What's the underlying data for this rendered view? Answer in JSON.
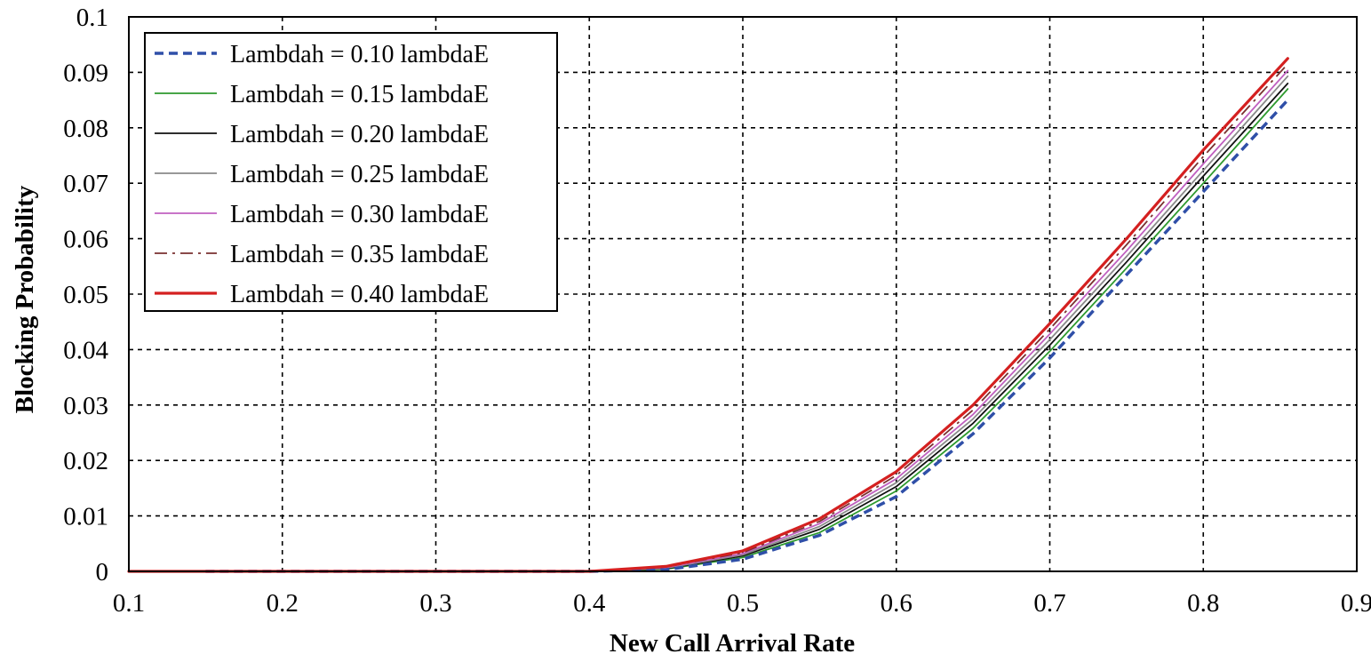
{
  "chart_data": {
    "type": "line",
    "title": "",
    "xlabel": "New Call Arrival Rate",
    "ylabel": "Blocking Probability",
    "xlim": [
      0.1,
      0.9
    ],
    "ylim": [
      0,
      0.1
    ],
    "xticks": [
      "0.1",
      "0.2",
      "0.3",
      "0.4",
      "0.5",
      "0.6",
      "0.7",
      "0.8",
      "0.9"
    ],
    "yticks": [
      "0",
      "0.01",
      "0.02",
      "0.03",
      "0.04",
      "0.05",
      "0.06",
      "0.07",
      "0.08",
      "0.09",
      "0.1"
    ],
    "grid": true,
    "legend_position": "top-left",
    "series": [
      {
        "name": "Lambdah = 0.10 lambdaE",
        "color": "#2f4fa8",
        "style": "dashed",
        "width": 3.5,
        "x": [
          0.15,
          0.2,
          0.3,
          0.4,
          0.45,
          0.5,
          0.55,
          0.6,
          0.65,
          0.7,
          0.75,
          0.8,
          0.855
        ],
        "y": [
          0,
          0,
          0,
          0,
          0.0003,
          0.0022,
          0.0065,
          0.0135,
          0.0248,
          0.0385,
          0.0535,
          0.0685,
          0.085
        ]
      },
      {
        "name": "Lambdah = 0.15 lambdaE",
        "color": "#2e9a2e",
        "style": "solid",
        "width": 1.8,
        "x": [
          0.15,
          0.2,
          0.3,
          0.4,
          0.45,
          0.5,
          0.55,
          0.6,
          0.65,
          0.7,
          0.75,
          0.8,
          0.855
        ],
        "y": [
          0,
          0,
          0,
          0,
          0.0004,
          0.0025,
          0.007,
          0.0145,
          0.0258,
          0.0397,
          0.0547,
          0.07,
          0.087
        ]
      },
      {
        "name": "Lambdah = 0.20 lambdaE",
        "color": "#111111",
        "style": "solid",
        "width": 1.8,
        "x": [
          0.15,
          0.2,
          0.3,
          0.4,
          0.45,
          0.5,
          0.55,
          0.6,
          0.65,
          0.7,
          0.75,
          0.8,
          0.855
        ],
        "y": [
          0,
          0,
          0,
          0,
          0.0005,
          0.0028,
          0.0076,
          0.0153,
          0.0267,
          0.0408,
          0.0558,
          0.0713,
          0.088
        ]
      },
      {
        "name": "Lambdah = 0.25 lambdaE",
        "color": "#8a8a8a",
        "style": "solid",
        "width": 1.8,
        "x": [
          0.15,
          0.2,
          0.3,
          0.4,
          0.45,
          0.5,
          0.55,
          0.6,
          0.65,
          0.7,
          0.75,
          0.8,
          0.855
        ],
        "y": [
          0,
          0,
          0,
          0,
          0.0006,
          0.003,
          0.0081,
          0.016,
          0.0275,
          0.0418,
          0.0568,
          0.0723,
          0.0893
        ]
      },
      {
        "name": "Lambdah = 0.30 lambdaE",
        "color": "#c060c0",
        "style": "solid",
        "width": 1.8,
        "x": [
          0.15,
          0.2,
          0.3,
          0.4,
          0.45,
          0.5,
          0.55,
          0.6,
          0.65,
          0.7,
          0.75,
          0.8,
          0.855
        ],
        "y": [
          0,
          0,
          0,
          0,
          0.0007,
          0.0032,
          0.0086,
          0.0167,
          0.0283,
          0.0428,
          0.0578,
          0.0735,
          0.0903
        ]
      },
      {
        "name": "Lambdah = 0.35 lambdaE",
        "color": "#7a3030",
        "style": "dashdot",
        "width": 1.8,
        "x": [
          0.15,
          0.2,
          0.3,
          0.4,
          0.45,
          0.5,
          0.55,
          0.6,
          0.65,
          0.7,
          0.75,
          0.8,
          0.855
        ],
        "y": [
          0,
          0,
          0,
          0,
          0.0008,
          0.0034,
          0.009,
          0.0173,
          0.0291,
          0.0437,
          0.0589,
          0.0748,
          0.0915
        ]
      },
      {
        "name": "Lambdah = 0.40 lambdaE",
        "color": "#d42020",
        "style": "solid",
        "width": 3.2,
        "x": [
          0.1,
          0.15,
          0.2,
          0.3,
          0.4,
          0.45,
          0.5,
          0.55,
          0.6,
          0.65,
          0.7,
          0.75,
          0.8,
          0.855
        ],
        "y": [
          0,
          0,
          0,
          0,
          0,
          0.0009,
          0.0037,
          0.0095,
          0.018,
          0.03,
          0.0447,
          0.06,
          0.076,
          0.0925
        ]
      }
    ]
  }
}
